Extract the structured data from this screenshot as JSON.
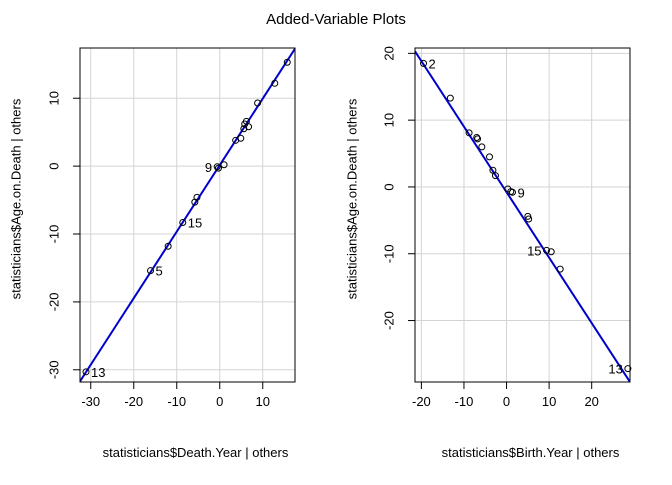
{
  "title": "Added-Variable Plots",
  "colors": {
    "line": "#0000cd",
    "points": "#000000",
    "grid": "#d3d3d3",
    "frame": "#000000"
  },
  "chart_data": [
    {
      "type": "scatter",
      "xlabel": "statisticians$Death.Year | others",
      "ylabel": "statisticians$Age.on.Death  | others",
      "xlim": [
        -32.5,
        17.5
      ],
      "ylim": [
        -31.8,
        17.4
      ],
      "xticks": [
        -30,
        -20,
        -10,
        0,
        10
      ],
      "yticks": [
        -30,
        -20,
        -10,
        0,
        10
      ],
      "grid": true,
      "x": [
        -31.1,
        -16.1,
        -12.0,
        -8.6,
        -5.8,
        -5.3,
        -0.6,
        -0.3,
        1.0,
        3.7,
        4.9,
        5.6,
        5.8,
        6.2,
        6.7,
        8.8,
        12.8,
        15.7
      ],
      "y": [
        -30.3,
        -15.4,
        -11.8,
        -8.3,
        -5.3,
        -4.6,
        -0.1,
        -0.3,
        0.2,
        3.8,
        4.1,
        5.5,
        6.2,
        6.6,
        5.8,
        9.3,
        12.2,
        15.3
      ],
      "point_labels": [
        {
          "index": 0,
          "text": "13",
          "side": "right"
        },
        {
          "index": 1,
          "text": "5",
          "side": "right"
        },
        {
          "index": 3,
          "text": "15",
          "side": "right"
        },
        {
          "index": 6,
          "text": "9",
          "side": "left"
        }
      ],
      "fit_line": {
        "x": [
          -32.5,
          17.5
        ],
        "y": [
          -31.7,
          17.3
        ]
      }
    },
    {
      "type": "scatter",
      "xlabel": "statisticians$Birth.Year | others",
      "ylabel": "statisticians$Age.on.Death  | others",
      "xlim": [
        -21.5,
        29.0
      ],
      "ylim": [
        -29.2,
        20.8
      ],
      "xticks": [
        -20,
        -10,
        0,
        10,
        20
      ],
      "yticks": [
        -20,
        -10,
        0,
        10,
        20
      ],
      "grid": true,
      "x": [
        -19.5,
        -13.2,
        -8.8,
        -7.0,
        -6.8,
        -5.8,
        -4.0,
        -3.2,
        -2.6,
        0.3,
        1.0,
        1.4,
        5.0,
        5.2,
        9.4,
        10.5,
        12.6,
        28.5
      ],
      "y": [
        18.5,
        13.3,
        8.1,
        7.4,
        7.2,
        6.0,
        4.5,
        2.5,
        1.7,
        -0.3,
        -0.7,
        -0.8,
        -4.4,
        -4.8,
        -9.5,
        -9.7,
        -12.3,
        -27.2
      ],
      "point_labels": [
        {
          "index": 0,
          "text": "2",
          "side": "right"
        },
        {
          "index": 11,
          "text": "9",
          "side": "right"
        },
        {
          "index": 14,
          "text": "15",
          "side": "left"
        },
        {
          "index": 17,
          "text": "13",
          "side": "left"
        }
      ],
      "fit_line": {
        "x": [
          -21.5,
          29.0
        ],
        "y": [
          20.3,
          -29.2
        ]
      }
    }
  ]
}
